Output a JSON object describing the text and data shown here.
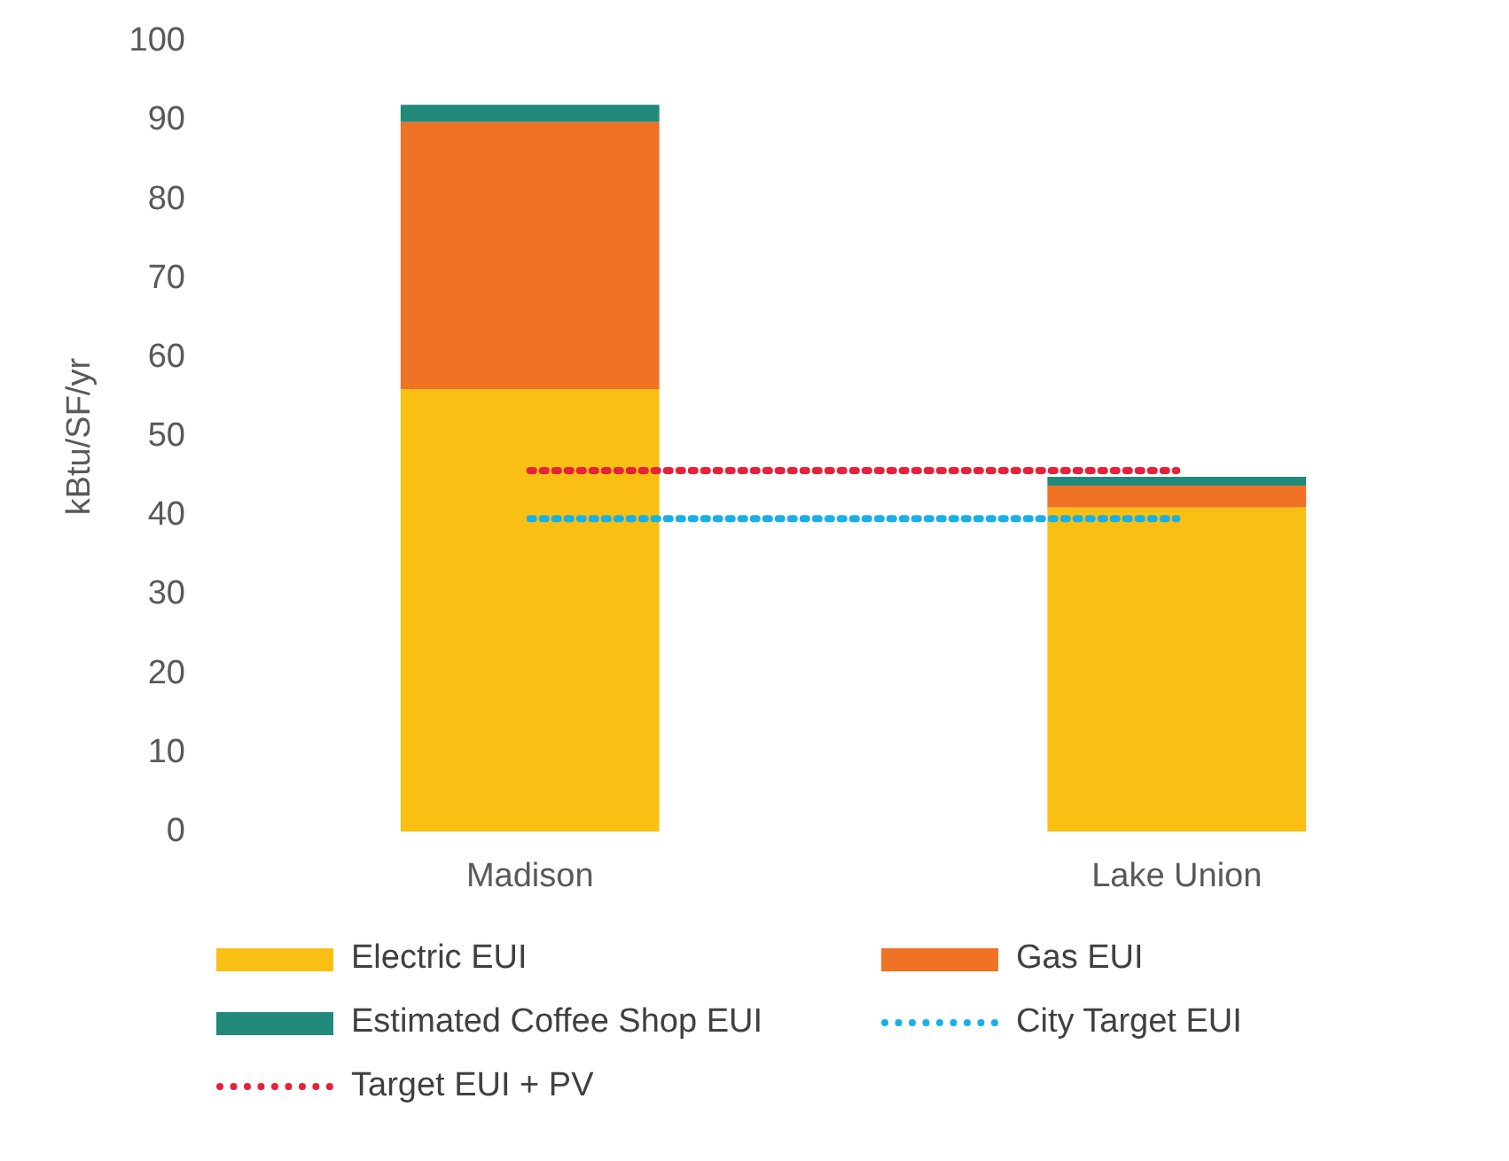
{
  "chart_data": {
    "type": "bar",
    "stacked": true,
    "ylabel": "kBtu/SF/yr",
    "categories": [
      "Madison",
      "Lake Union"
    ],
    "series": [
      {
        "name": "Electric EUI",
        "color": "#f9c013",
        "values": [
          56,
          41
        ]
      },
      {
        "name": "Gas EUI",
        "color": "#f07224",
        "values": [
          33.8,
          2.8
        ]
      },
      {
        "name": "Estimated Coffee Shop EUI",
        "color": "#218a7a",
        "values": [
          2.2,
          1.1
        ]
      },
      {
        "name": "City Target EUI",
        "type": "line",
        "color": "#17b0e8",
        "line_style": "dotted",
        "values": [
          39.6,
          39.6
        ]
      },
      {
        "name": "Target EUI + PV",
        "type": "line",
        "color": "#e8203a",
        "line_style": "dotted",
        "values": [
          45.7,
          45.7
        ]
      }
    ],
    "ylim": [
      0,
      100
    ],
    "yticks": [
      0,
      10,
      20,
      30,
      40,
      50,
      60,
      70,
      80,
      90,
      100
    ],
    "grid": false,
    "legend": "bottom",
    "marker": "none"
  }
}
